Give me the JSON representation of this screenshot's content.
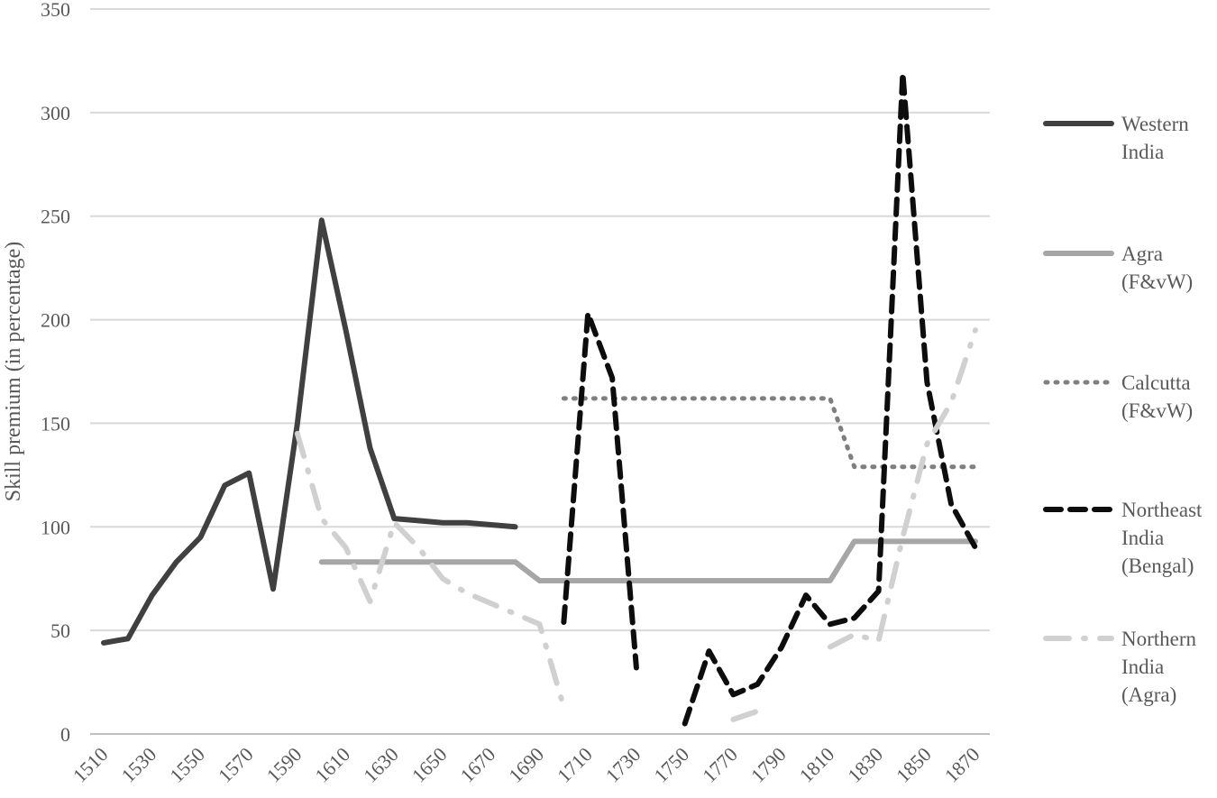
{
  "chart_data": {
    "type": "line",
    "title": "",
    "xlabel": "",
    "ylabel": "Skill premium (in percentage)",
    "xlim": [
      1510,
      1870
    ],
    "ylim": [
      0,
      350
    ],
    "yticks": [
      0,
      50,
      100,
      150,
      200,
      250,
      300,
      350
    ],
    "xticks": [
      1510,
      1530,
      1550,
      1570,
      1590,
      1610,
      1630,
      1650,
      1670,
      1690,
      1710,
      1730,
      1750,
      1770,
      1790,
      1810,
      1830,
      1850,
      1870
    ],
    "grid": "horizontal",
    "legend_position": "right",
    "series": [
      {
        "name": "Western India",
        "label_lines": [
          "Western",
          "India"
        ],
        "color": "#404040",
        "style": "solid",
        "points": [
          [
            1510,
            44
          ],
          [
            1520,
            46
          ],
          [
            1530,
            67
          ],
          [
            1540,
            83
          ],
          [
            1550,
            95
          ],
          [
            1560,
            120
          ],
          [
            1570,
            126
          ],
          [
            1580,
            70
          ],
          [
            1590,
            150
          ],
          [
            1600,
            248
          ],
          [
            1610,
            195
          ],
          [
            1620,
            138
          ],
          [
            1630,
            104
          ],
          [
            1640,
            103
          ],
          [
            1650,
            102
          ],
          [
            1660,
            102
          ],
          [
            1670,
            101
          ],
          [
            1680,
            100
          ]
        ]
      },
      {
        "name": "Agra (F&vW)",
        "label_lines": [
          "Agra",
          "(F&vW)"
        ],
        "color": "#a6a6a6",
        "style": "solid",
        "points": [
          [
            1600,
            83
          ],
          [
            1610,
            83
          ],
          [
            1620,
            83
          ],
          [
            1630,
            83
          ],
          [
            1640,
            83
          ],
          [
            1650,
            83
          ],
          [
            1660,
            83
          ],
          [
            1670,
            83
          ],
          [
            1680,
            83
          ],
          [
            1690,
            74
          ],
          [
            1700,
            74
          ],
          [
            1710,
            74
          ],
          [
            1720,
            74
          ],
          [
            1730,
            74
          ],
          [
            1740,
            74
          ],
          [
            1750,
            74
          ],
          [
            1760,
            74
          ],
          [
            1770,
            74
          ],
          [
            1780,
            74
          ],
          [
            1790,
            74
          ],
          [
            1800,
            74
          ],
          [
            1810,
            74
          ],
          [
            1820,
            93
          ],
          [
            1830,
            93
          ],
          [
            1840,
            93
          ],
          [
            1850,
            93
          ],
          [
            1860,
            93
          ],
          [
            1870,
            93
          ]
        ]
      },
      {
        "name": "Calcutta (F&vW)",
        "label_lines": [
          "Calcutta",
          "(F&vW)"
        ],
        "color": "#7f7f7f",
        "style": "dotted",
        "points": [
          [
            1700,
            162
          ],
          [
            1710,
            162
          ],
          [
            1720,
            162
          ],
          [
            1730,
            162
          ],
          [
            1740,
            162
          ],
          [
            1750,
            162
          ],
          [
            1760,
            162
          ],
          [
            1770,
            162
          ],
          [
            1780,
            162
          ],
          [
            1790,
            162
          ],
          [
            1800,
            162
          ],
          [
            1810,
            162
          ],
          [
            1820,
            129
          ],
          [
            1830,
            129
          ],
          [
            1840,
            129
          ],
          [
            1850,
            129
          ],
          [
            1860,
            129
          ],
          [
            1870,
            129
          ]
        ]
      },
      {
        "name": "Northeast India (Bengal)",
        "label_lines": [
          "Northeast",
          "India",
          "(Bengal)"
        ],
        "color": "#0d0d0d",
        "style": "dashed",
        "segments": [
          [
            [
              1700,
              54
            ],
            [
              1710,
              203
            ],
            [
              1720,
              172
            ],
            [
              1730,
              32
            ]
          ],
          [
            [
              1750,
              5
            ],
            [
              1760,
              40
            ],
            [
              1770,
              19
            ],
            [
              1780,
              24
            ],
            [
              1790,
              42
            ],
            [
              1800,
              67
            ],
            [
              1810,
              53
            ],
            [
              1820,
              56
            ],
            [
              1830,
              69
            ],
            [
              1840,
              319
            ],
            [
              1850,
              170
            ],
            [
              1860,
              111
            ],
            [
              1870,
              90
            ]
          ]
        ]
      },
      {
        "name": "Northern India (Agra)",
        "label_lines": [
          "Northern",
          "India",
          "(Agra)"
        ],
        "color": "#d0d0d0",
        "style": "dashdot",
        "segments": [
          [
            [
              1590,
              145
            ],
            [
              1600,
              104
            ],
            [
              1610,
              90
            ],
            [
              1620,
              64
            ],
            [
              1630,
              102
            ],
            [
              1640,
              90
            ],
            [
              1650,
              75
            ],
            [
              1660,
              68
            ],
            [
              1670,
              63
            ],
            [
              1680,
              58
            ],
            [
              1690,
              53
            ],
            [
              1700,
              13
            ]
          ],
          [
            [
              1770,
              7
            ],
            [
              1780,
              11
            ]
          ],
          [
            [
              1810,
              42
            ],
            [
              1820,
              48
            ],
            [
              1830,
              45
            ],
            [
              1840,
              95
            ],
            [
              1850,
              140
            ],
            [
              1860,
              160
            ],
            [
              1870,
              195
            ]
          ]
        ]
      }
    ]
  }
}
